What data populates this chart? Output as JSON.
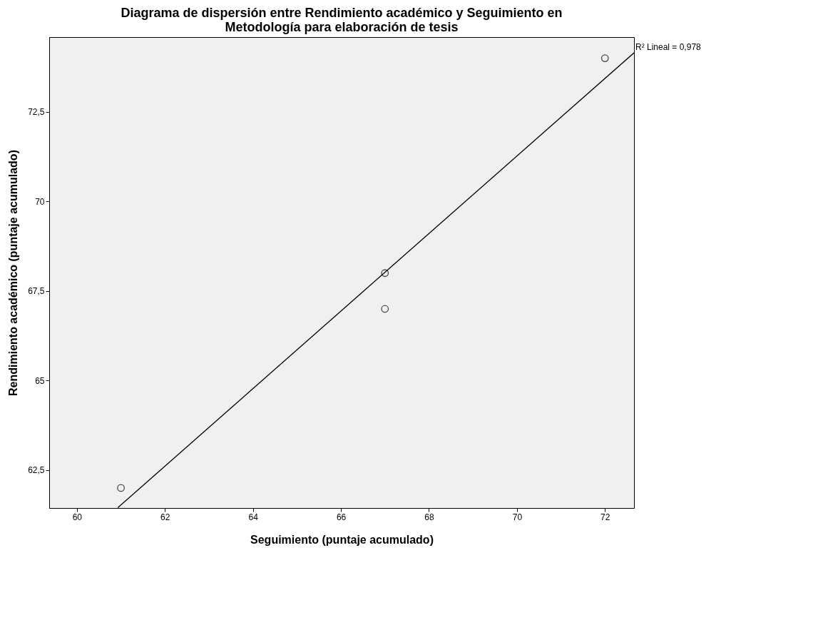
{
  "chart_data": {
    "type": "scatter",
    "title": [
      "Diagrama de dispersión entre Rendimiento académico y Seguimiento en",
      "Metodología para elaboración de tesis"
    ],
    "xlabel": "Seguimiento (puntaje acumulado)",
    "ylabel": "Rendimiento académico (puntaje acumulado)",
    "series": [
      {
        "color": "#000000",
        "marker": "circle",
        "x": [
          61,
          67,
          67,
          72
        ],
        "values": [
          62,
          68,
          67,
          74
        ]
      },
      {
        "type": "line",
        "color": "#000000",
        "line_style": "solid",
        "marker": "none",
        "x": [
          60.93,
          72.66
        ],
        "values": [
          61.45,
          74.15
        ]
      }
    ],
    "xlim": [
      59.37,
      72.66
    ],
    "ylim": [
      61.44,
      74.59
    ],
    "xticks": [
      60,
      62,
      64,
      66,
      68,
      70,
      72
    ],
    "yticks": [
      {
        "value": 62.5,
        "label": "62,5"
      },
      {
        "value": 65,
        "label": "65"
      },
      {
        "value": 67.5,
        "label": "67,5"
      },
      {
        "value": 70,
        "label": "70"
      },
      {
        "value": 72.5,
        "label": "72,5"
      }
    ],
    "annotations": [
      "R² Lineal = 0,978"
    ],
    "grid": false
  }
}
